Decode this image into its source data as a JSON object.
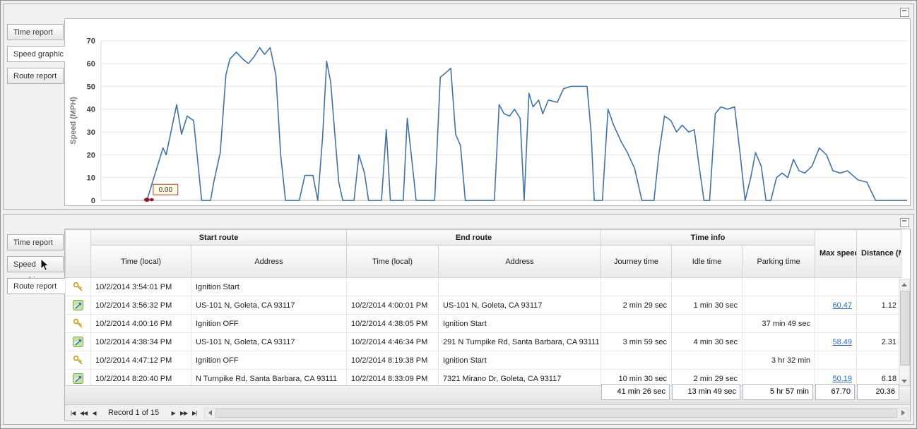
{
  "colors": {
    "chart_line": "#4272a4",
    "chart_marker": "#8b1f1f",
    "link": "#2b6cb8",
    "annotation_bg": "#fffbe1",
    "annotation_border": "#9c4747"
  },
  "chart_data": {
    "type": "line",
    "title": "",
    "xlabel": "",
    "ylabel": "Speed (MPH)",
    "ylim": [
      0,
      70
    ],
    "yticks": [
      0,
      10,
      20,
      30,
      40,
      50,
      60,
      70
    ],
    "grid": true,
    "legend": "none",
    "annotation": {
      "text": "0.00",
      "at_point_index": 0
    },
    "x_unit": "fraction_of_plot_width",
    "points": [
      [
        0.057,
        0
      ],
      [
        0.077,
        23
      ],
      [
        0.081,
        20
      ],
      [
        0.094,
        42
      ],
      [
        0.1,
        29
      ],
      [
        0.107,
        37
      ],
      [
        0.115,
        35
      ],
      [
        0.125,
        0
      ],
      [
        0.136,
        0
      ],
      [
        0.14,
        8
      ],
      [
        0.148,
        21
      ],
      [
        0.155,
        55
      ],
      [
        0.16,
        62
      ],
      [
        0.168,
        65
      ],
      [
        0.176,
        62
      ],
      [
        0.183,
        60
      ],
      [
        0.19,
        63
      ],
      [
        0.197,
        67
      ],
      [
        0.203,
        64
      ],
      [
        0.21,
        67
      ],
      [
        0.217,
        55
      ],
      [
        0.223,
        20
      ],
      [
        0.229,
        0
      ],
      [
        0.246,
        0
      ],
      [
        0.253,
        11
      ],
      [
        0.263,
        11
      ],
      [
        0.269,
        0
      ],
      [
        0.275,
        28
      ],
      [
        0.28,
        61
      ],
      [
        0.285,
        52
      ],
      [
        0.29,
        30
      ],
      [
        0.295,
        8
      ],
      [
        0.3,
        0
      ],
      [
        0.314,
        0
      ],
      [
        0.32,
        20
      ],
      [
        0.327,
        12
      ],
      [
        0.332,
        0
      ],
      [
        0.348,
        0
      ],
      [
        0.354,
        31
      ],
      [
        0.359,
        0
      ],
      [
        0.375,
        0
      ],
      [
        0.38,
        36
      ],
      [
        0.385,
        20
      ],
      [
        0.391,
        0
      ],
      [
        0.414,
        0
      ],
      [
        0.421,
        54
      ],
      [
        0.428,
        56
      ],
      [
        0.434,
        58
      ],
      [
        0.44,
        29
      ],
      [
        0.446,
        24
      ],
      [
        0.452,
        0
      ],
      [
        0.488,
        0
      ],
      [
        0.494,
        42
      ],
      [
        0.5,
        38
      ],
      [
        0.507,
        37
      ],
      [
        0.513,
        40
      ],
      [
        0.52,
        36
      ],
      [
        0.525,
        0
      ],
      [
        0.531,
        47
      ],
      [
        0.536,
        41
      ],
      [
        0.543,
        44
      ],
      [
        0.548,
        38
      ],
      [
        0.555,
        44
      ],
      [
        0.566,
        43
      ],
      [
        0.574,
        49
      ],
      [
        0.583,
        50
      ],
      [
        0.592,
        50
      ],
      [
        0.603,
        50
      ],
      [
        0.608,
        30
      ],
      [
        0.612,
        0
      ],
      [
        0.622,
        0
      ],
      [
        0.629,
        40
      ],
      [
        0.636,
        33
      ],
      [
        0.645,
        26
      ],
      [
        0.653,
        21
      ],
      [
        0.662,
        14
      ],
      [
        0.671,
        0
      ],
      [
        0.686,
        0
      ],
      [
        0.692,
        20
      ],
      [
        0.699,
        37
      ],
      [
        0.707,
        35
      ],
      [
        0.714,
        30
      ],
      [
        0.721,
        33
      ],
      [
        0.729,
        30
      ],
      [
        0.736,
        31
      ],
      [
        0.742,
        15
      ],
      [
        0.748,
        0
      ],
      [
        0.755,
        0
      ],
      [
        0.762,
        38
      ],
      [
        0.769,
        41
      ],
      [
        0.777,
        40
      ],
      [
        0.786,
        41
      ],
      [
        0.793,
        20
      ],
      [
        0.799,
        0
      ],
      [
        0.806,
        10
      ],
      [
        0.812,
        21
      ],
      [
        0.819,
        15
      ],
      [
        0.825,
        0
      ],
      [
        0.831,
        0
      ],
      [
        0.838,
        10
      ],
      [
        0.845,
        12
      ],
      [
        0.852,
        10
      ],
      [
        0.859,
        18
      ],
      [
        0.866,
        13
      ],
      [
        0.873,
        12
      ],
      [
        0.882,
        15
      ],
      [
        0.891,
        23
      ],
      [
        0.9,
        20
      ],
      [
        0.908,
        13
      ],
      [
        0.917,
        12
      ],
      [
        0.926,
        13
      ],
      [
        0.939,
        9
      ],
      [
        0.95,
        8
      ],
      [
        0.961,
        0
      ],
      [
        1.0,
        0
      ]
    ]
  },
  "top_panel": {
    "tabs": [
      {
        "label": "Time report",
        "selected": false
      },
      {
        "label": "Speed graphic",
        "selected": true
      },
      {
        "label": "Route report",
        "selected": false
      }
    ]
  },
  "bottom_panel": {
    "tabs": [
      {
        "label": "Time report",
        "selected": false
      },
      {
        "label": "Speed graphic",
        "selected": false
      },
      {
        "label": "Route report",
        "selected": true
      }
    ],
    "grid": {
      "group_headers": [
        "Start route",
        "End route",
        "Time info"
      ],
      "columns": [
        "Time (local)",
        "Address",
        "Time (local)",
        "Address",
        "Journey time",
        "Idle time",
        "Parking time",
        "Max speed (MPH)",
        "Distance (Miles)"
      ],
      "rows": [
        {
          "icon": "key-icon",
          "start_time": "10/2/2014 3:54:01 PM",
          "start_address": "Ignition Start",
          "end_time": "",
          "end_address": "",
          "journey": "",
          "idle": "",
          "parking": "",
          "max_speed": "",
          "max_speed_link": false,
          "distance": ""
        },
        {
          "icon": "route-icon",
          "start_time": "10/2/2014 3:56:32 PM",
          "start_address": "US-101 N, Goleta, CA 93117",
          "end_time": "10/2/2014 4:00:01 PM",
          "end_address": "US-101 N, Goleta, CA 93117",
          "journey": "2 min 29 sec",
          "idle": "1 min 30 sec",
          "parking": "",
          "max_speed": "60.47",
          "max_speed_link": true,
          "distance": "1.12"
        },
        {
          "icon": "key-icon",
          "start_time": "10/2/2014 4:00:16 PM",
          "start_address": "Ignition OFF",
          "end_time": "10/2/2014 4:38:05 PM",
          "end_address": "Ignition Start",
          "journey": "",
          "idle": "",
          "parking": "37 min 49 sec",
          "max_speed": "",
          "max_speed_link": false,
          "distance": ""
        },
        {
          "icon": "route-icon",
          "start_time": "10/2/2014 4:38:34 PM",
          "start_address": "US-101 N, Goleta, CA 93117",
          "end_time": "10/2/2014 4:46:34 PM",
          "end_address": "291 N Turnpike Rd, Santa Barbara, CA 93111",
          "journey": "3 min 59 sec",
          "idle": "4 min 30 sec",
          "parking": "",
          "max_speed": "58.49",
          "max_speed_link": true,
          "distance": "2.31"
        },
        {
          "icon": "key-icon",
          "start_time": "10/2/2014 4:47:12 PM",
          "start_address": "Ignition OFF",
          "end_time": "10/2/2014 8:19:38 PM",
          "end_address": "Ignition Start",
          "journey": "",
          "idle": "",
          "parking": "3 hr 32 min",
          "max_speed": "",
          "max_speed_link": false,
          "distance": ""
        },
        {
          "icon": "route-icon",
          "start_time": "10/2/2014 8:20:40 PM",
          "start_address": "N Turnpike Rd, Santa Barbara, CA 93111",
          "end_time": "10/2/2014 8:33:09 PM",
          "end_address": "7321 Mirano Dr, Goleta, CA 93117",
          "journey": "10 min 30 sec",
          "idle": "2 min 29 sec",
          "parking": "",
          "max_speed": "50.19",
          "max_speed_link": true,
          "distance": "6.18"
        }
      ],
      "totals": {
        "journey": "41 min 26 sec",
        "idle": "13 min 49 sec",
        "parking": "5 hr 57 min",
        "max_speed": "67.70",
        "distance": "20.36"
      },
      "navigator": {
        "label": "Record 1 of 15",
        "first": "|◀",
        "prev_page": "◀◀",
        "prev": "◀",
        "next": "▶",
        "next_page": "▶▶",
        "last": "▶|"
      }
    }
  }
}
